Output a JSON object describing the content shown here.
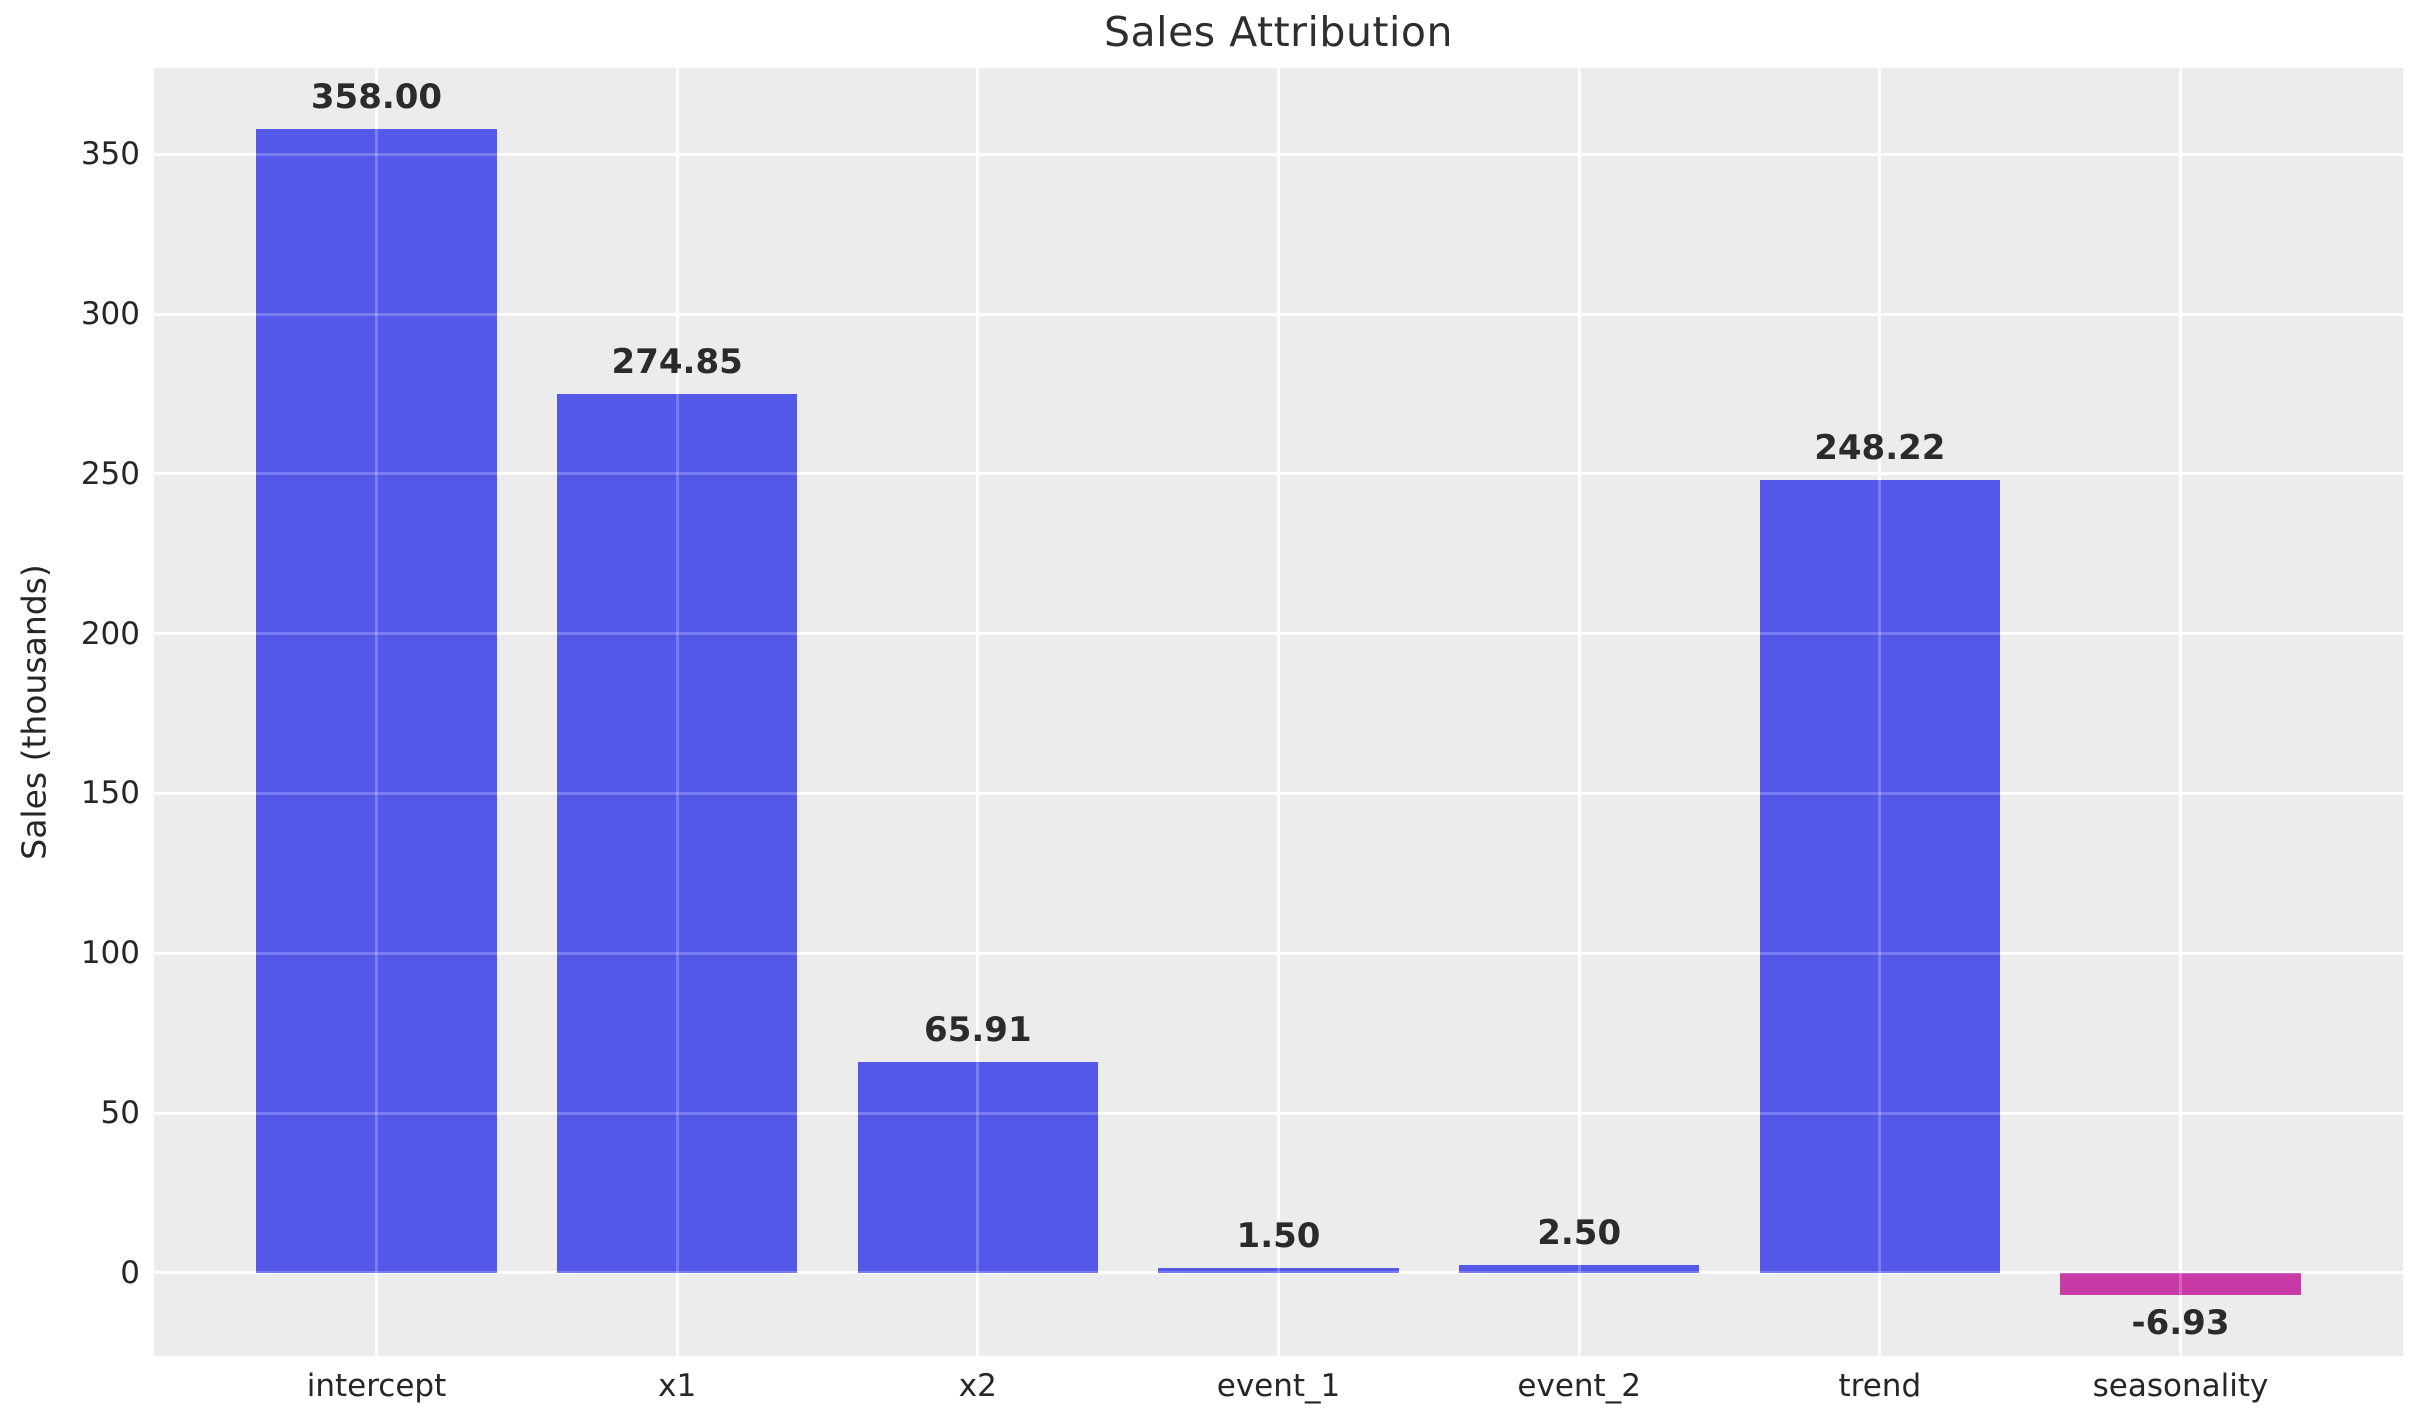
{
  "chart_data": {
    "type": "bar",
    "title": "Sales Attribution",
    "ylabel": "Sales (thousands)",
    "xlabel": "",
    "categories": [
      "intercept",
      "x1",
      "x2",
      "event_1",
      "event_2",
      "trend",
      "seasonality"
    ],
    "values": [
      358.0,
      274.85,
      65.91,
      1.5,
      2.5,
      248.22,
      -6.93
    ],
    "value_labels": [
      "358.00",
      "274.85",
      "65.91",
      "1.50",
      "2.50",
      "248.22",
      "-6.93"
    ],
    "yticks": [
      0,
      50,
      100,
      150,
      200,
      250,
      300,
      350
    ],
    "ytick_labels": [
      "0",
      "50",
      "100",
      "150",
      "200",
      "250",
      "300",
      "350"
    ],
    "ylim": [
      -26,
      377
    ],
    "xlim": [
      -0.74,
      6.74
    ],
    "bar_width": 0.8,
    "grid": true,
    "legend": false,
    "colors": {
      "positive_bar": "#4E53E8",
      "negative_bar": "#C634A3",
      "plot_background": "#ECECEC",
      "gridline": "#FFFFFF",
      "text": "#262626",
      "value_label_text": "#2B2B2B"
    }
  }
}
